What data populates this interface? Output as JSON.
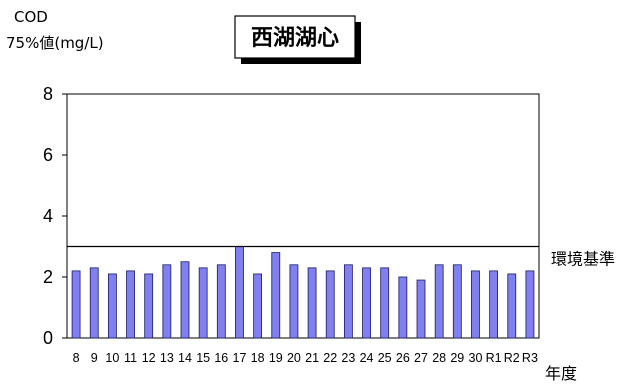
{
  "chart_data": {
    "type": "bar",
    "title": "西湖湖心",
    "ylabel_line1": "COD",
    "ylabel_line2": "75%値(mg/L)",
    "xlabel": "年度",
    "ylim": [
      0,
      8
    ],
    "yticks": [
      "0",
      "2",
      "4",
      "6",
      "8"
    ],
    "categories": [
      "8",
      "9",
      "10",
      "11",
      "12",
      "13",
      "14",
      "15",
      "16",
      "17",
      "18",
      "19",
      "20",
      "21",
      "22",
      "23",
      "24",
      "25",
      "26",
      "27",
      "28",
      "29",
      "30",
      "R1",
      "R2",
      "R3"
    ],
    "values": [
      2.2,
      2.3,
      2.1,
      2.2,
      2.1,
      2.4,
      2.5,
      2.3,
      2.4,
      3.0,
      2.1,
      2.8,
      2.4,
      2.3,
      2.2,
      2.4,
      2.3,
      2.3,
      2.0,
      1.9,
      2.4,
      2.4,
      2.2,
      2.2,
      2.1,
      2.2
    ],
    "reference_line": {
      "label": "環境基準",
      "value": 3
    },
    "bar_color": "#8080f0",
    "bar_stroke": "#1a1a66",
    "grid": false,
    "legend": "none"
  }
}
